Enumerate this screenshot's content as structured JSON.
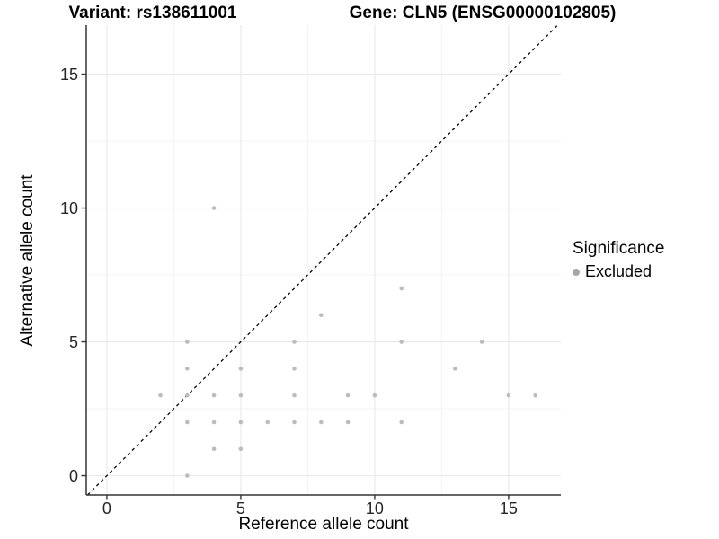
{
  "chart_data": {
    "type": "scatter",
    "title_left": "Variant: rs138611001",
    "title_right": "Gene: CLN5 (ENSG00000102805)",
    "xlabel": "Reference allele count",
    "ylabel": "Alternative allele count",
    "xlim": [
      -0.77,
      16.95
    ],
    "ylim": [
      -0.72,
      16.83
    ],
    "x_ticks": [
      0,
      5,
      10,
      15
    ],
    "y_ticks": [
      0,
      5,
      10,
      15
    ],
    "x_tick_labels": [
      "0",
      "5",
      "10",
      "15"
    ],
    "y_tick_labels": [
      "0",
      "5",
      "10",
      "15"
    ],
    "x_minor_ticks": [
      2.5,
      7.5,
      12.5
    ],
    "y_minor_ticks": [
      2.5,
      7.5,
      12.5
    ],
    "grid": "on",
    "legend": {
      "title": "Significance",
      "position": "right",
      "items": [
        {
          "label": "Excluded",
          "color": "#a6a6a6"
        }
      ]
    },
    "identity_line": {
      "slope": 1,
      "intercept": 0,
      "style": "dashed",
      "color": "#000000"
    },
    "series": [
      {
        "name": "Excluded",
        "points": [
          [
            4,
            10
          ],
          [
            11,
            7
          ],
          [
            8,
            6
          ],
          [
            3,
            5
          ],
          [
            7,
            5
          ],
          [
            11,
            5
          ],
          [
            14,
            5
          ],
          [
            3,
            4
          ],
          [
            5,
            4
          ],
          [
            7,
            4
          ],
          [
            13,
            4
          ],
          [
            2,
            3
          ],
          [
            3,
            3
          ],
          [
            4,
            3
          ],
          [
            5,
            3
          ],
          [
            7,
            3
          ],
          [
            9,
            3
          ],
          [
            10,
            3
          ],
          [
            15,
            3
          ],
          [
            16,
            3
          ],
          [
            3,
            2
          ],
          [
            4,
            2
          ],
          [
            5,
            2
          ],
          [
            6,
            2
          ],
          [
            7,
            2
          ],
          [
            8,
            2
          ],
          [
            9,
            2
          ],
          [
            11,
            2
          ],
          [
            4,
            1
          ],
          [
            5,
            1
          ],
          [
            3,
            0
          ]
        ]
      }
    ],
    "colors": {
      "point": "#bcbcbc",
      "grid_major": "#e8e8e8",
      "grid_minor": "#f3f3f3",
      "axis": "#333333",
      "tick_label": "#262626",
      "panel_background": "#ffffff"
    }
  }
}
